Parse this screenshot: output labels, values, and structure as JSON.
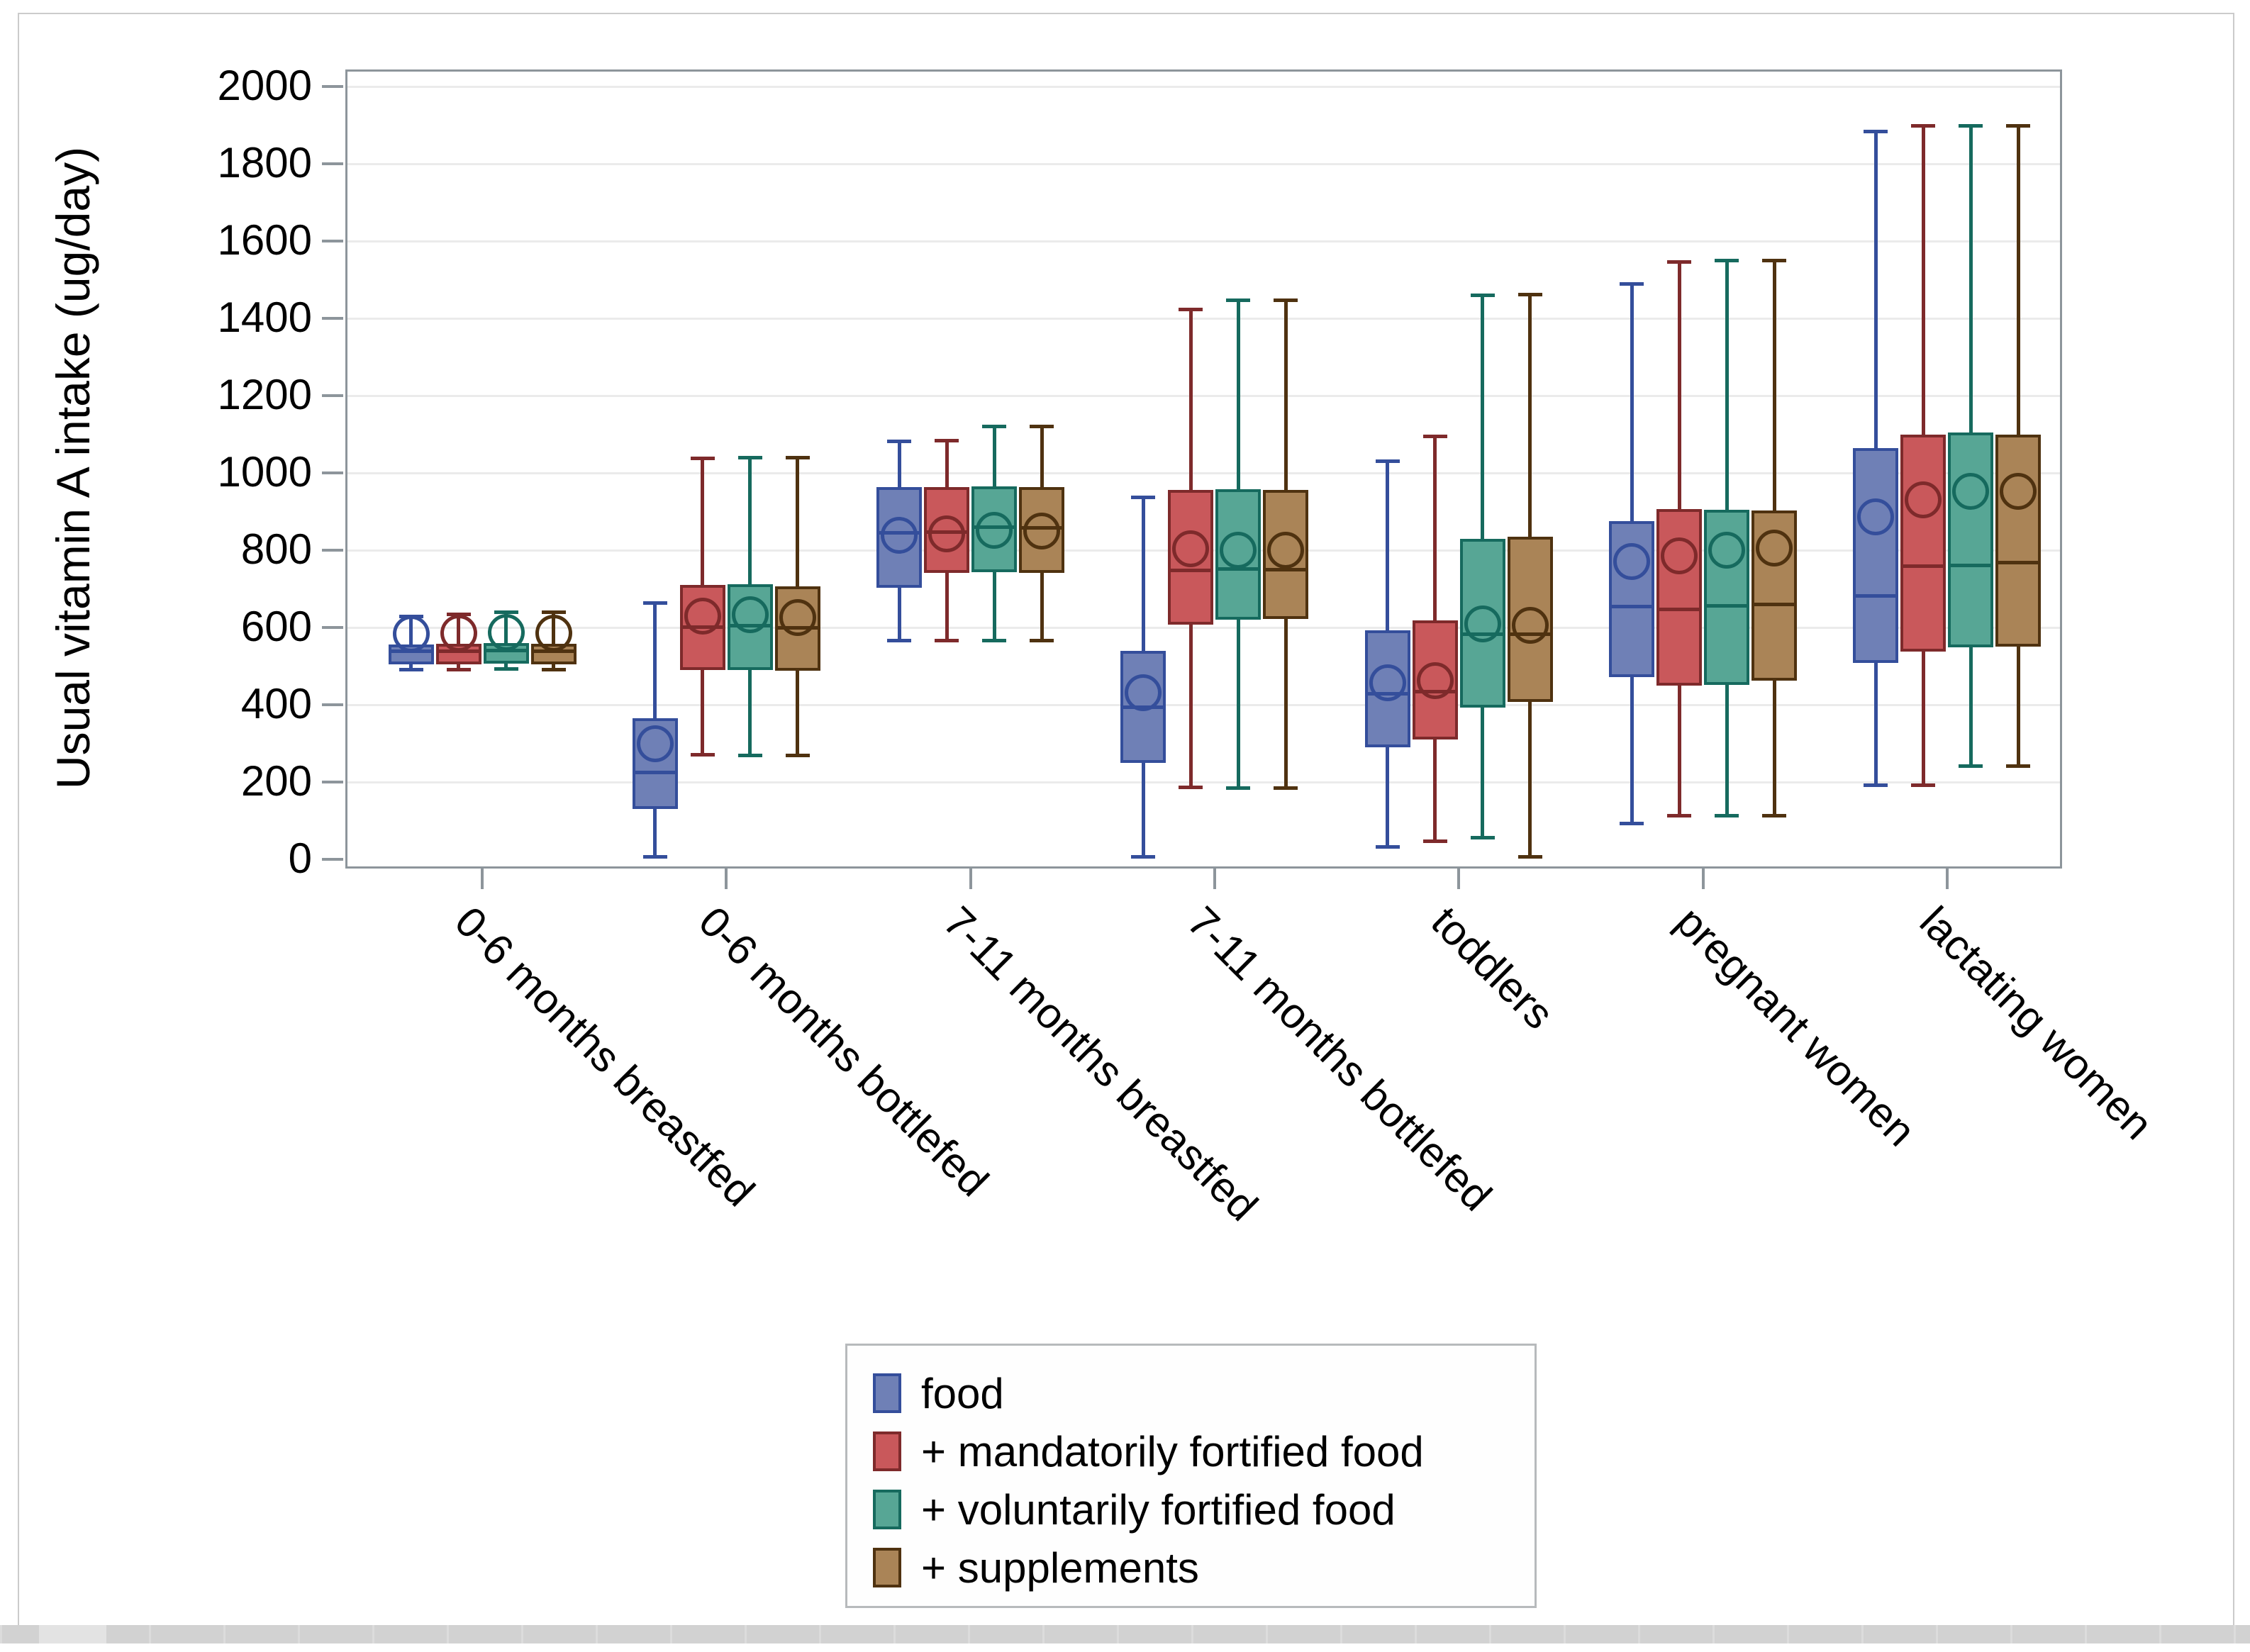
{
  "chart_data": {
    "type": "box",
    "title": "",
    "ylabel": "Usual vitamin A intake (ug/day)",
    "xlabel": "",
    "ylim": [
      0,
      2000
    ],
    "yticks": [
      0,
      200,
      400,
      600,
      800,
      1000,
      1200,
      1400,
      1600,
      1800,
      2000
    ],
    "grid": "horizontal",
    "legend_position": "bottom-center",
    "categories": [
      "0-6 months breastfed",
      "0-6 months bottlefed",
      "7-11 months breastfed",
      "7-11 months bottlefed",
      "toddlers",
      "pregnant women",
      "lactating women"
    ],
    "box_format": [
      "whisker_low",
      "q1",
      "median",
      "q3",
      "whisker_high",
      "mean"
    ],
    "series": [
      {
        "name": "food",
        "fill": "#6F80B6",
        "stroke": "#344E9B",
        "boxes": [
          [
            490,
            505,
            540,
            556,
            630,
            583
          ],
          [
            5,
            130,
            225,
            365,
            665,
            300
          ],
          [
            565,
            703,
            845,
            963,
            1082,
            838
          ],
          [
            5,
            250,
            395,
            540,
            937,
            432
          ],
          [
            32,
            290,
            430,
            592,
            1032,
            457
          ],
          [
            92,
            472,
            655,
            876,
            1490,
            770
          ],
          [
            190,
            508,
            682,
            1065,
            1885,
            886
          ]
        ]
      },
      {
        "name": "+ mandatorily fortified food",
        "fill": "#C9585B",
        "stroke": "#7E2A2B",
        "boxes": [
          [
            490,
            505,
            540,
            558,
            635,
            585
          ],
          [
            270,
            490,
            602,
            710,
            1038,
            630
          ],
          [
            565,
            742,
            848,
            963,
            1085,
            842
          ],
          [
            185,
            608,
            748,
            956,
            1423,
            803
          ],
          [
            45,
            310,
            435,
            618,
            1095,
            463
          ],
          [
            112,
            450,
            648,
            906,
            1546,
            785
          ],
          [
            190,
            538,
            760,
            1100,
            1900,
            930
          ]
        ]
      },
      {
        "name": "+ voluntarily fortified food",
        "fill": "#57A695",
        "stroke": "#166A5E",
        "boxes": [
          [
            492,
            507,
            542,
            560,
            640,
            588
          ],
          [
            268,
            490,
            605,
            712,
            1040,
            633
          ],
          [
            566,
            743,
            860,
            965,
            1122,
            852
          ],
          [
            183,
            620,
            752,
            957,
            1447,
            800
          ],
          [
            55,
            392,
            583,
            830,
            1460,
            610
          ],
          [
            112,
            452,
            657,
            905,
            1550,
            800
          ],
          [
            240,
            548,
            762,
            1105,
            1900,
            953
          ]
        ]
      },
      {
        "name": "+ supplements",
        "fill": "#AA8457",
        "stroke": "#4F3210",
        "boxes": [
          [
            490,
            505,
            540,
            558,
            640,
            586
          ],
          [
            268,
            488,
            600,
            706,
            1040,
            625
          ],
          [
            565,
            742,
            858,
            964,
            1122,
            850
          ],
          [
            183,
            622,
            750,
            956,
            1447,
            800
          ],
          [
            5,
            408,
            583,
            835,
            1462,
            606
          ],
          [
            112,
            462,
            660,
            903,
            1550,
            805
          ],
          [
            240,
            550,
            768,
            1100,
            1900,
            953
          ]
        ]
      }
    ],
    "axis_color": "#8D959B",
    "gridline_color": "#EBEBEB"
  }
}
